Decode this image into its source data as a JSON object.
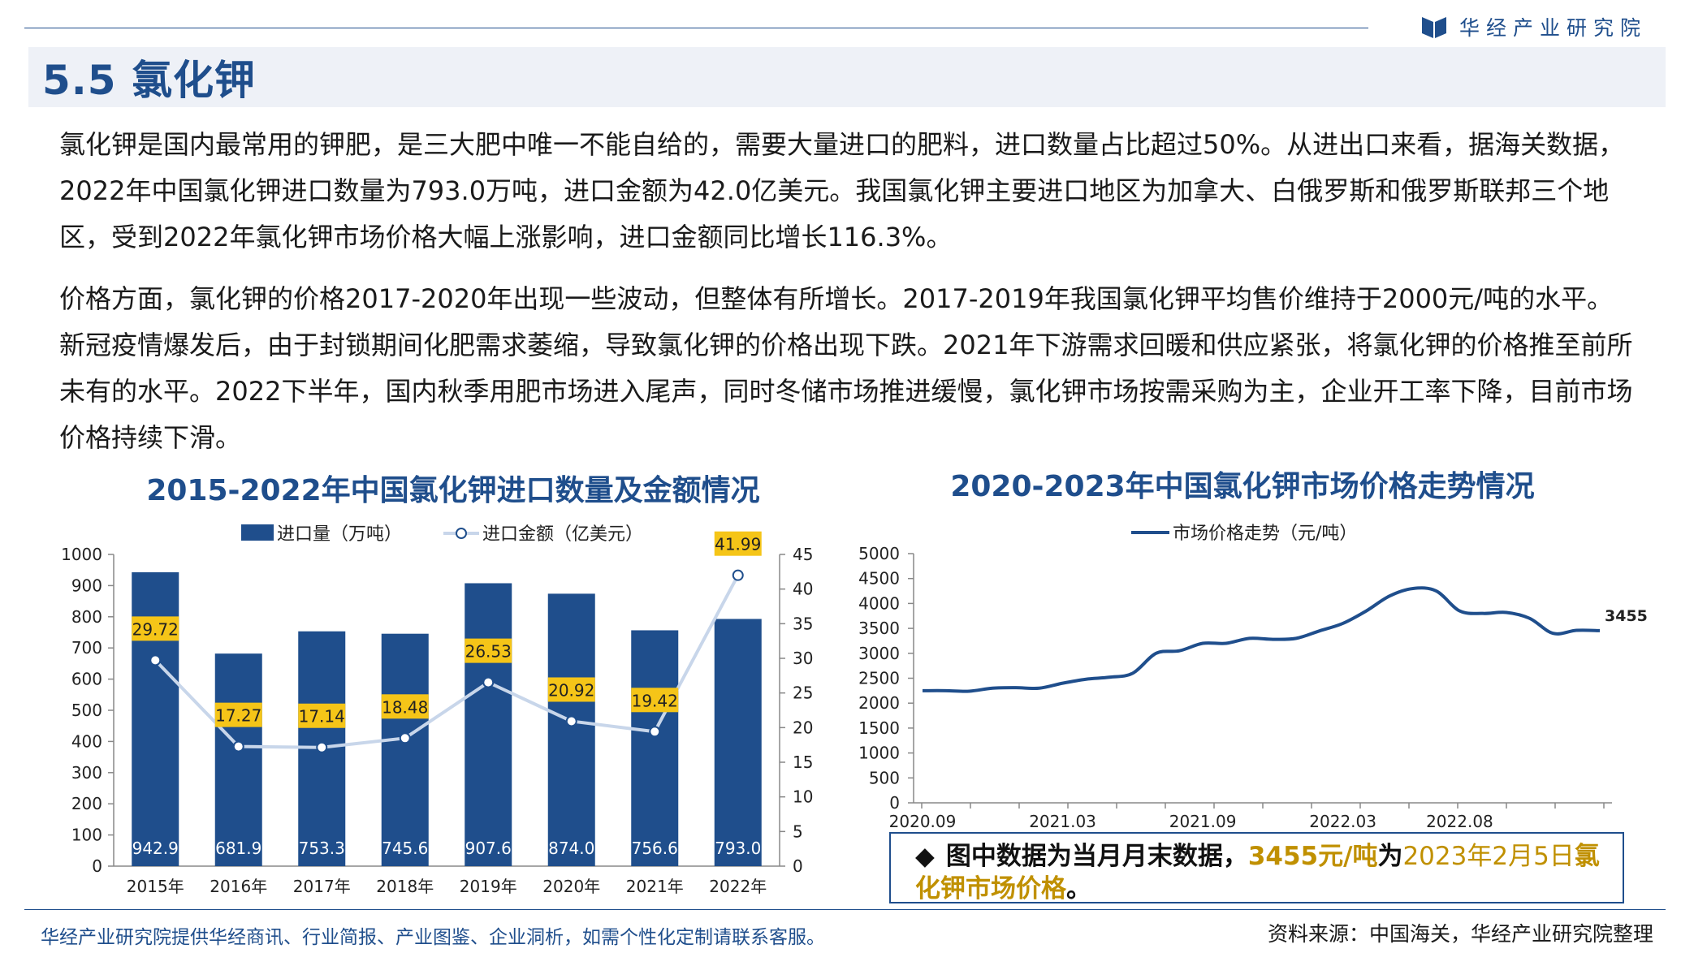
{
  "brand": {
    "name": "华经产业研究院",
    "logo_color": "#1f4e8c"
  },
  "section": {
    "title": "5.5 氯化钾"
  },
  "paragraphs": {
    "p1": "氯化钾是国内最常用的钾肥，是三大肥中唯一不能自给的，需要大量进口的肥料，进口数量占比超过50%。从进出口来看，据海关数据，2022年中国氯化钾进口数量为793.0万吨，进口金额为42.0亿美元。我国氯化钾主要进口地区为加拿大、白俄罗斯和俄罗斯联邦三个地区，受到2022年氯化钾市场价格大幅上涨影响，进口金额同比增长116.3%。",
    "p2": "价格方面，氯化钾的价格2017-2020年出现一些波动，但整体有所增长。2017-2019年我国氯化钾平均售价维持于2000元/吨的水平。新冠疫情爆发后，由于封锁期间化肥需求萎缩，导致氯化钾的价格出现下跌。2021年下游需求回暖和供应紧张，将氯化钾的价格推至前所未有的水平。2022下半年，国内秋季用肥市场进入尾声，同时冬储市场推进缓慢，氯化钾市场按需采购为主，企业开工率下降，目前市场价格持续下滑。"
  },
  "chart_data": [
    {
      "type": "bar",
      "title": "2015-2022年中国氯化钾进口数量及金额情况",
      "categories": [
        "2015年",
        "2016年",
        "2017年",
        "2018年",
        "2019年",
        "2020年",
        "2021年",
        "2022年"
      ],
      "series": [
        {
          "name": "进口量（万吨）",
          "type": "bar",
          "axis": "left",
          "color": "#1f4e8c",
          "values": [
            942.9,
            681.9,
            753.3,
            745.6,
            907.6,
            874.0,
            756.6,
            793.0
          ],
          "labels": [
            "942.9",
            "681.9",
            "753.3",
            "745.6",
            "907.6",
            "874.0",
            "756.6",
            "793.0"
          ]
        },
        {
          "name": "进口金额（亿美元）",
          "type": "line",
          "axis": "right",
          "color": "#c8d6ea",
          "values": [
            29.72,
            17.27,
            17.14,
            18.48,
            26.53,
            20.92,
            19.42,
            41.99
          ],
          "labels": [
            "29.72",
            "17.27",
            "17.14",
            "18.48",
            "26.53",
            "20.92",
            "19.42",
            "41.99"
          ]
        }
      ],
      "ylim": [
        0,
        1000
      ],
      "y_ticks": [
        "0",
        "100",
        "200",
        "300",
        "400",
        "500",
        "600",
        "700",
        "800",
        "900",
        "1000"
      ],
      "y2lim": [
        0,
        45
      ],
      "y2_ticks": [
        "0",
        "5",
        "10",
        "15",
        "20",
        "25",
        "30",
        "35",
        "40",
        "45"
      ],
      "legend": "top-center",
      "grid": false,
      "label_bg_color": "#f5c518"
    },
    {
      "type": "line",
      "title": "2020-2023年中国氯化钾市场价格走势情况",
      "series": [
        {
          "name": "市场价格走势（元/吨）",
          "color": "#1f4e8c",
          "x": [
            "2020-09",
            "2020-10",
            "2020-11",
            "2020-12",
            "2021-01",
            "2021-02",
            "2021-03",
            "2021-04",
            "2021-05",
            "2021-06",
            "2021-07",
            "2021-08",
            "2021-09",
            "2021-10",
            "2021-11",
            "2021-12",
            "2022-01",
            "2022-02",
            "2022-03",
            "2022-04",
            "2022-05",
            "2022-06",
            "2022-07",
            "2022-08",
            "2022-09",
            "2022-10",
            "2022-11",
            "2022-12",
            "2023-01",
            "2023-02"
          ],
          "values": [
            2250,
            2250,
            2240,
            2300,
            2310,
            2300,
            2400,
            2480,
            2520,
            2600,
            3000,
            3050,
            3200,
            3200,
            3300,
            3280,
            3300,
            3450,
            3600,
            3850,
            4150,
            4300,
            4250,
            3850,
            3800,
            3820,
            3700,
            3400,
            3460,
            3455
          ]
        }
      ],
      "x_ticks": [
        "2020.09",
        "2021.03",
        "2021.09",
        "2022.03",
        "2022.08"
      ],
      "ylim": [
        0,
        5000
      ],
      "y_ticks": [
        "0",
        "500",
        "1000",
        "1500",
        "2000",
        "2500",
        "3000",
        "3500",
        "4000",
        "4500",
        "5000"
      ],
      "end_label": "3455",
      "legend": "top-center",
      "grid": false
    }
  ],
  "note": {
    "diamond": "◆",
    "text_a": "图中数据为当月月末数据，",
    "price": "3455元/吨",
    "text_b": "为",
    "date": "2023年2月5日",
    "text_c": "氯化钾市场价格",
    "text_d": "。"
  },
  "footer": {
    "left": "华经产业研究院提供华经商讯、行业简报、产业图鉴、企业洞析，如需个性化定制请联系客服。",
    "right": "资料来源：中国海关，华经产业研究院整理"
  }
}
